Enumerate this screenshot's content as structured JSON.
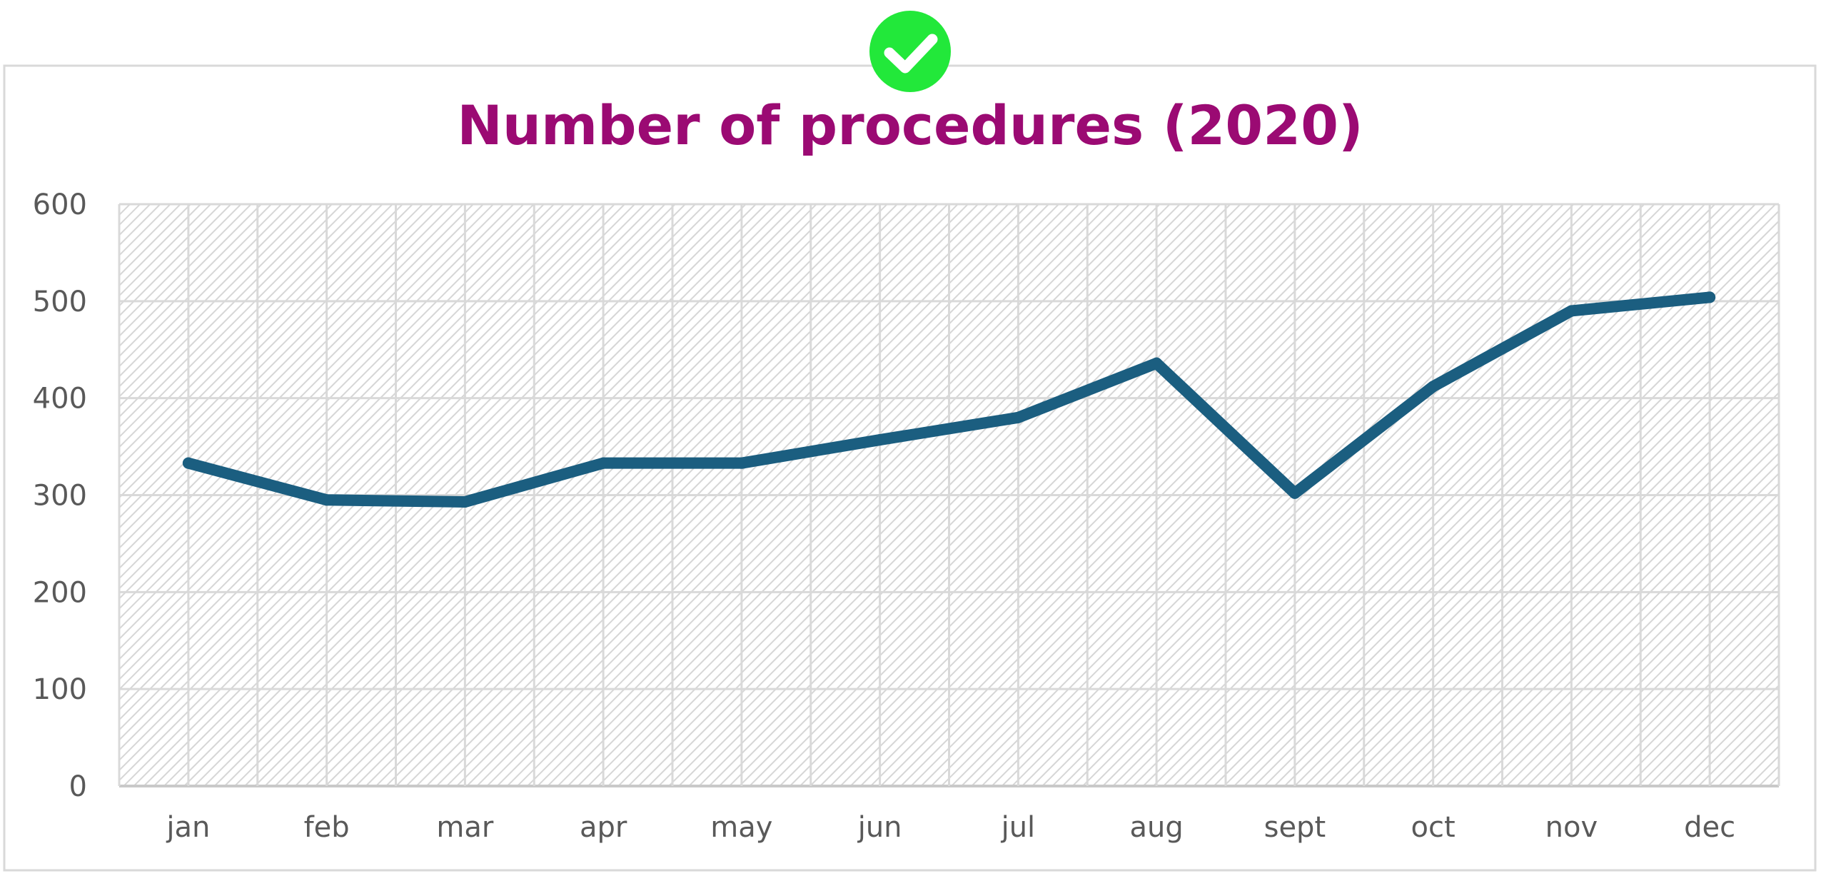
{
  "colors": {
    "title": "#9b0a73",
    "line": "#1b5e80",
    "badge": "#22e83a",
    "grid": "#d9d9d9",
    "hatch": "#d6d6d6",
    "tick_text": "#595959",
    "frame": "#d9d9d9"
  },
  "badge": {
    "icon": "check-icon"
  },
  "chart_data": {
    "type": "line",
    "title": "Number of procedures (2020)",
    "categories": [
      "jan",
      "feb",
      "mar",
      "apr",
      "may",
      "jun",
      "jul",
      "aug",
      "sept",
      "oct",
      "nov",
      "dec"
    ],
    "series": [
      {
        "values": [
          333,
          295,
          293,
          333,
          333,
          357,
          380,
          436,
          302,
          412,
          490,
          504
        ]
      }
    ],
    "yticks": [
      "0",
      "100",
      "200",
      "300",
      "400",
      "500",
      "600"
    ],
    "ylim": [
      0,
      600
    ],
    "grid": true,
    "legend": "none"
  }
}
